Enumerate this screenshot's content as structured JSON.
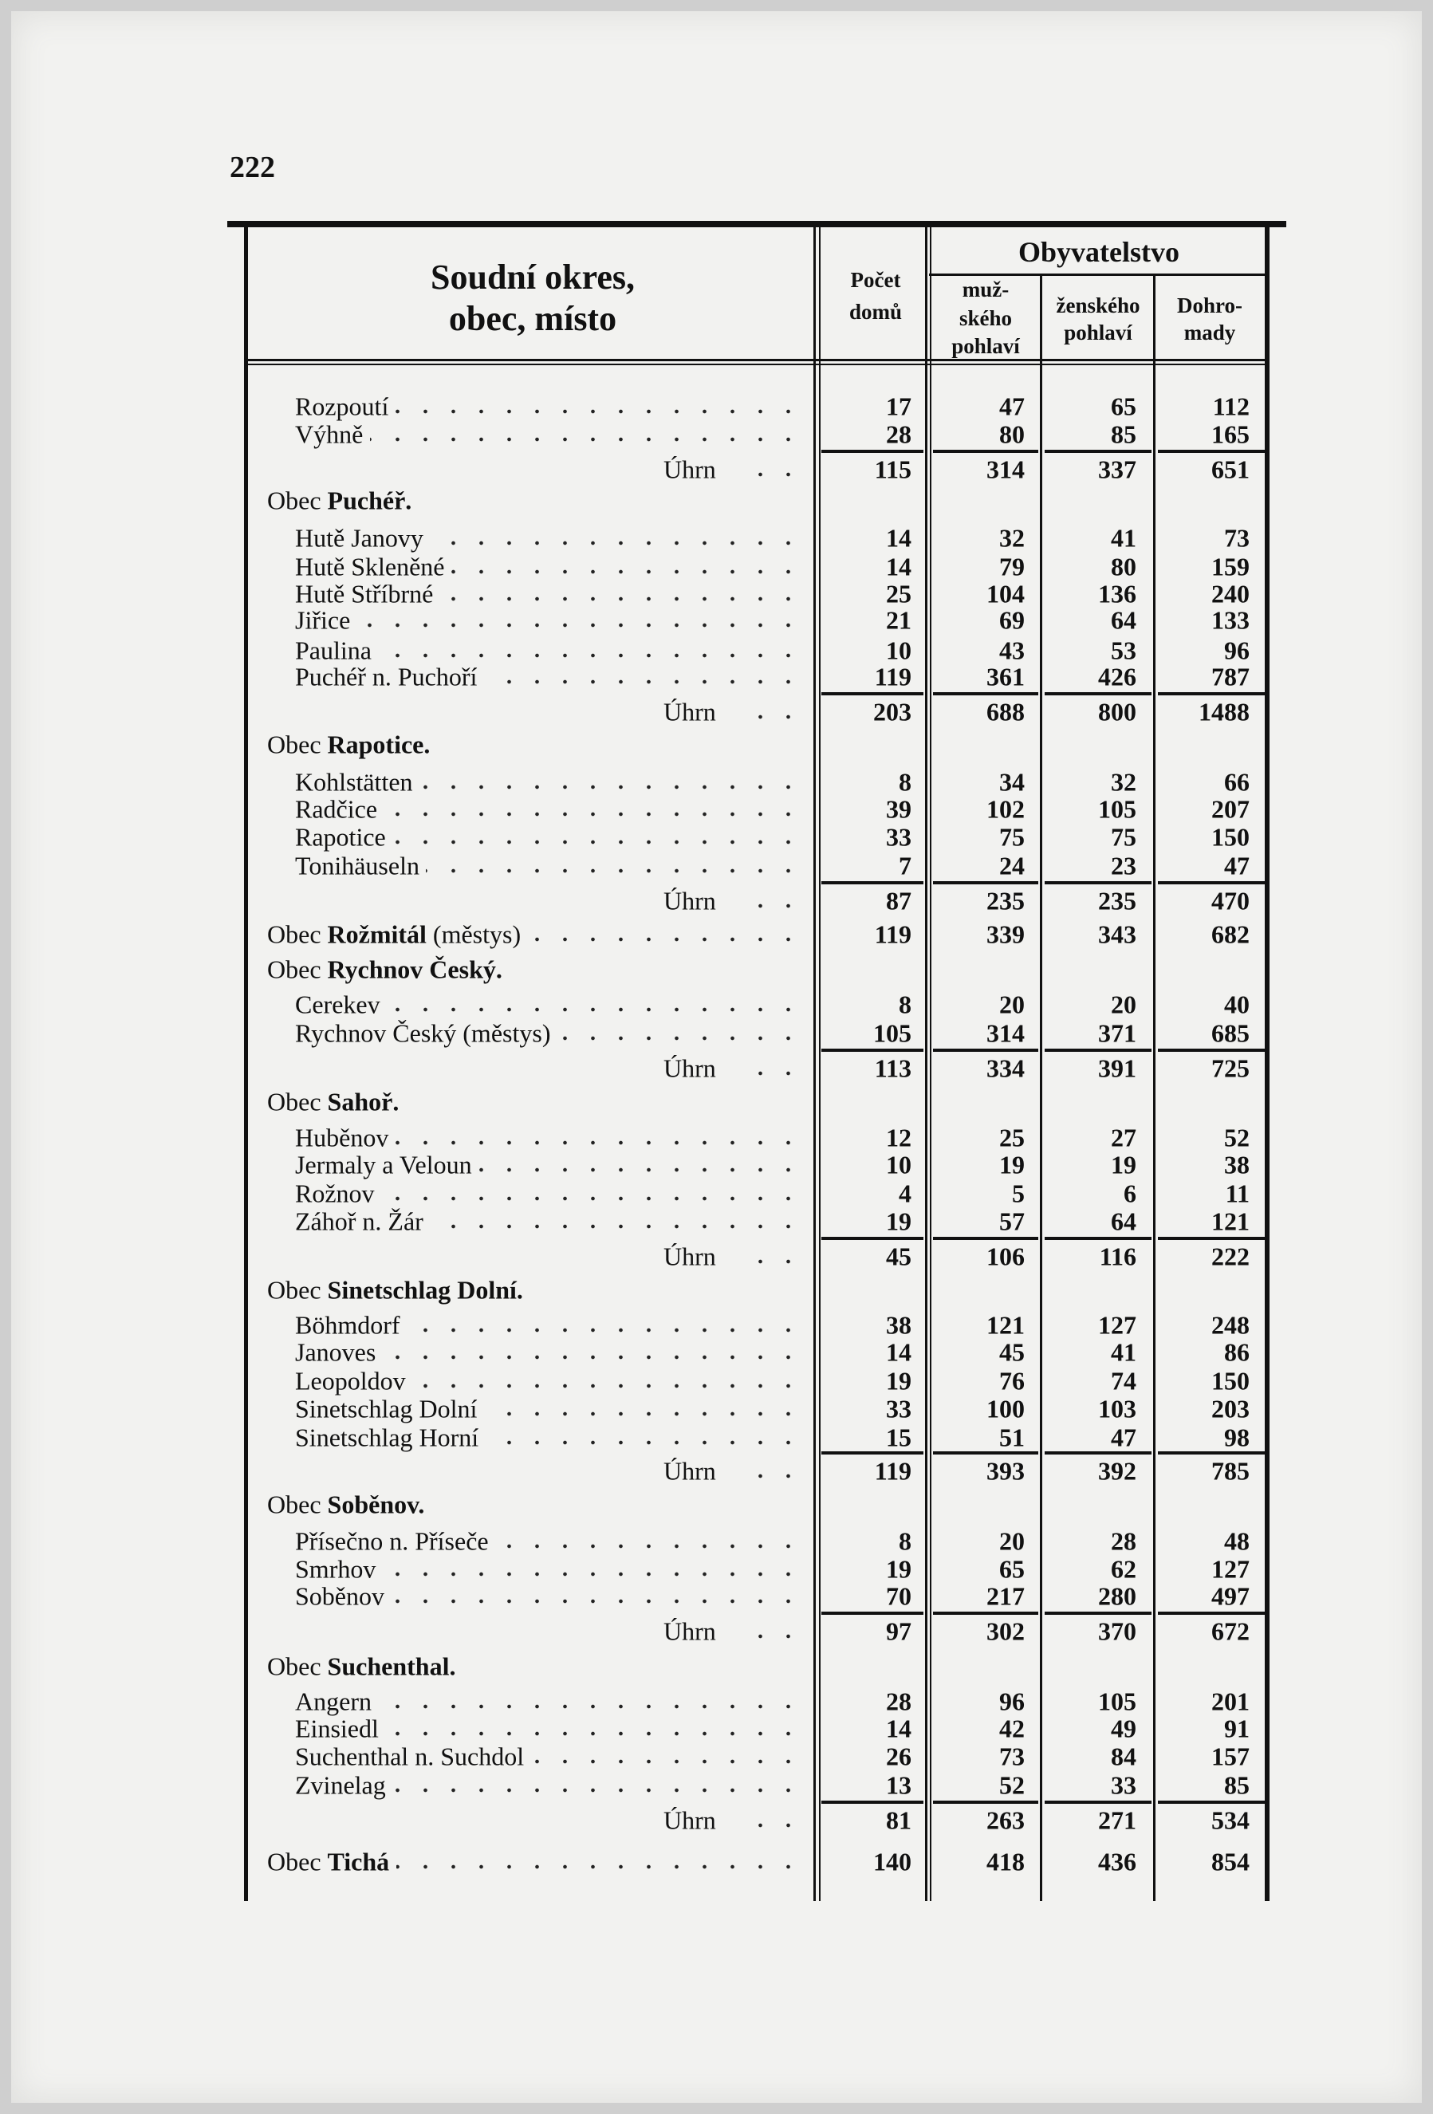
{
  "page_number": "222",
  "header": {
    "col_place": [
      "Soudní okres,",
      "obec, místo"
    ],
    "col_houses": [
      "Počet",
      "domů"
    ],
    "population_group": "Obyvatelstvo",
    "col_male": [
      "muž-",
      "ského",
      "pohlaví"
    ],
    "col_female": [
      "ženského",
      "pohlaví"
    ],
    "col_total": [
      "Dohro-",
      "mady"
    ]
  },
  "rows": [
    {
      "type": "item",
      "name": "Rozpoutí",
      "values": [
        "17",
        "47",
        "65",
        "112"
      ]
    },
    {
      "type": "item",
      "name": "Výhně",
      "values": [
        "28",
        "80",
        "85",
        "165"
      ]
    },
    {
      "type": "sum",
      "label": "Úhrn",
      "values": [
        "115",
        "314",
        "337",
        "651"
      ]
    },
    {
      "type": "obec",
      "prefix": "Obec",
      "name": "Puchéř."
    },
    {
      "type": "item",
      "name": "Hutě Janovy",
      "values": [
        "14",
        "32",
        "41",
        "73"
      ]
    },
    {
      "type": "item",
      "name": "Hutě Skleněné",
      "values": [
        "14",
        "79",
        "80",
        "159"
      ]
    },
    {
      "type": "item",
      "name": "Hutě Stříbrné",
      "values": [
        "25",
        "104",
        "136",
        "240"
      ]
    },
    {
      "type": "item",
      "name": "Jiřice",
      "values": [
        "21",
        "69",
        "64",
        "133"
      ]
    },
    {
      "type": "item",
      "name": "Paulina",
      "values": [
        "10",
        "43",
        "53",
        "96"
      ]
    },
    {
      "type": "item",
      "name": "Puchéř n. Puchoří",
      "values": [
        "119",
        "361",
        "426",
        "787"
      ]
    },
    {
      "type": "sum",
      "label": "Úhrn",
      "values": [
        "203",
        "688",
        "800",
        "1488"
      ]
    },
    {
      "type": "obec",
      "prefix": "Obec",
      "name": "Rapotice."
    },
    {
      "type": "item",
      "name": "Kohlstätten",
      "values": [
        "8",
        "34",
        "32",
        "66"
      ]
    },
    {
      "type": "item",
      "name": "Radčice",
      "values": [
        "39",
        "102",
        "105",
        "207"
      ]
    },
    {
      "type": "item",
      "name": "Rapotice",
      "values": [
        "33",
        "75",
        "75",
        "150"
      ]
    },
    {
      "type": "item",
      "name": "Tonihäuseln",
      "values": [
        "7",
        "24",
        "23",
        "47"
      ]
    },
    {
      "type": "sum",
      "label": "Úhrn",
      "values": [
        "87",
        "235",
        "235",
        "470"
      ]
    },
    {
      "type": "obec",
      "prefix": "Obec",
      "name": "Rožmitál",
      "note": "(městys)",
      "values": [
        "119",
        "339",
        "343",
        "682"
      ]
    },
    {
      "type": "obec",
      "prefix": "Obec",
      "name": "Rychnov Český."
    },
    {
      "type": "item",
      "name": "Cerekev",
      "values": [
        "8",
        "20",
        "20",
        "40"
      ]
    },
    {
      "type": "item",
      "name": "Rychnov Český (městys)",
      "values": [
        "105",
        "314",
        "371",
        "685"
      ]
    },
    {
      "type": "sum",
      "label": "Úhrn",
      "values": [
        "113",
        "334",
        "391",
        "725"
      ]
    },
    {
      "type": "obec",
      "prefix": "Obec",
      "name": "Sahoř."
    },
    {
      "type": "item",
      "name": "Huběnov",
      "values": [
        "12",
        "25",
        "27",
        "52"
      ]
    },
    {
      "type": "item",
      "name": "Jermaly a Veloun",
      "values": [
        "10",
        "19",
        "19",
        "38"
      ]
    },
    {
      "type": "item",
      "name": "Rožnov",
      "values": [
        "4",
        "5",
        "6",
        "11"
      ]
    },
    {
      "type": "item",
      "name": "Záhoř n. Žár",
      "values": [
        "19",
        "57",
        "64",
        "121"
      ]
    },
    {
      "type": "sum",
      "label": "Úhrn",
      "values": [
        "45",
        "106",
        "116",
        "222"
      ]
    },
    {
      "type": "obec",
      "prefix": "Obec",
      "name": "Sinetschlag Dolní."
    },
    {
      "type": "item",
      "name": "Böhmdorf",
      "values": [
        "38",
        "121",
        "127",
        "248"
      ]
    },
    {
      "type": "item",
      "name": "Janoves",
      "values": [
        "14",
        "45",
        "41",
        "86"
      ]
    },
    {
      "type": "item",
      "name": "Leopoldov",
      "values": [
        "19",
        "76",
        "74",
        "150"
      ]
    },
    {
      "type": "item",
      "name": "Sinetschlag Dolní",
      "values": [
        "33",
        "100",
        "103",
        "203"
      ]
    },
    {
      "type": "item",
      "name": "Sinetschlag Horní",
      "values": [
        "15",
        "51",
        "47",
        "98"
      ]
    },
    {
      "type": "sum",
      "label": "Úhrn",
      "values": [
        "119",
        "393",
        "392",
        "785"
      ]
    },
    {
      "type": "obec",
      "prefix": "Obec",
      "name": "Soběnov."
    },
    {
      "type": "item",
      "name": "Přísečno n. Příseče",
      "values": [
        "8",
        "20",
        "28",
        "48"
      ]
    },
    {
      "type": "item",
      "name": "Smrhov",
      "values": [
        "19",
        "65",
        "62",
        "127"
      ]
    },
    {
      "type": "item",
      "name": "Soběnov",
      "values": [
        "70",
        "217",
        "280",
        "497"
      ]
    },
    {
      "type": "sum",
      "label": "Úhrn",
      "values": [
        "97",
        "302",
        "370",
        "672"
      ]
    },
    {
      "type": "obec",
      "prefix": "Obec",
      "name": "Suchenthal."
    },
    {
      "type": "item",
      "name": "Angern",
      "values": [
        "28",
        "96",
        "105",
        "201"
      ]
    },
    {
      "type": "item",
      "name": "Einsiedl",
      "values": [
        "14",
        "42",
        "49",
        "91"
      ]
    },
    {
      "type": "item",
      "name": "Suchenthal n. Suchdol",
      "values": [
        "26",
        "73",
        "84",
        "157"
      ]
    },
    {
      "type": "item",
      "name": "Zvinelag",
      "values": [
        "13",
        "52",
        "33",
        "85"
      ]
    },
    {
      "type": "sum",
      "label": "Úhrn",
      "values": [
        "81",
        "263",
        "271",
        "534"
      ]
    },
    {
      "type": "obec",
      "prefix": "Obec",
      "name": "Tichá",
      "values": [
        "140",
        "418",
        "436",
        "854"
      ]
    }
  ]
}
